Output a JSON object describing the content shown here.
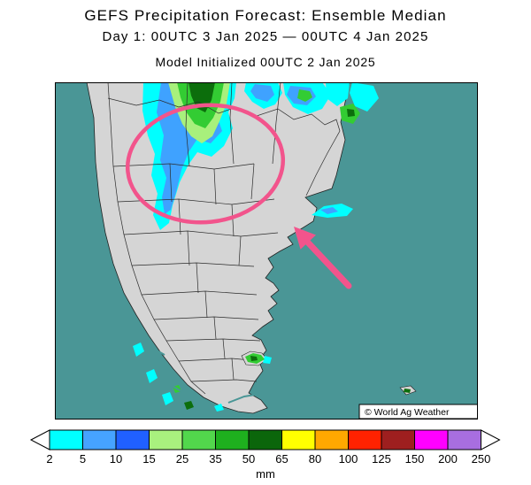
{
  "header": {
    "title": "GEFS Precipitation Forecast: Ensemble Median",
    "subtitle": "Day 1: 00UTC 3 Jan 2025 — 00UTC 4 Jan 2025",
    "initialized": "Model Initialized 00UTC 2 Jan 2025"
  },
  "map": {
    "watermark": "© World Ag Weather",
    "ocean_color": "#4a9696",
    "land_color": "#d5d5d5",
    "annotation_color": "#f2548c"
  },
  "legend": {
    "unit": "mm",
    "ticks": [
      2,
      5,
      10,
      15,
      25,
      35,
      50,
      65,
      80,
      100,
      125,
      150,
      200,
      250
    ],
    "colors": [
      "#00ffff",
      "#46a3ff",
      "#2060ff",
      "#a9f17e",
      "#52d74c",
      "#1eb01e",
      "#0b660b",
      "#ffff00",
      "#ffa800",
      "#ff2200",
      "#9e1f1f",
      "#ff00ff",
      "#a86ee0"
    ]
  }
}
